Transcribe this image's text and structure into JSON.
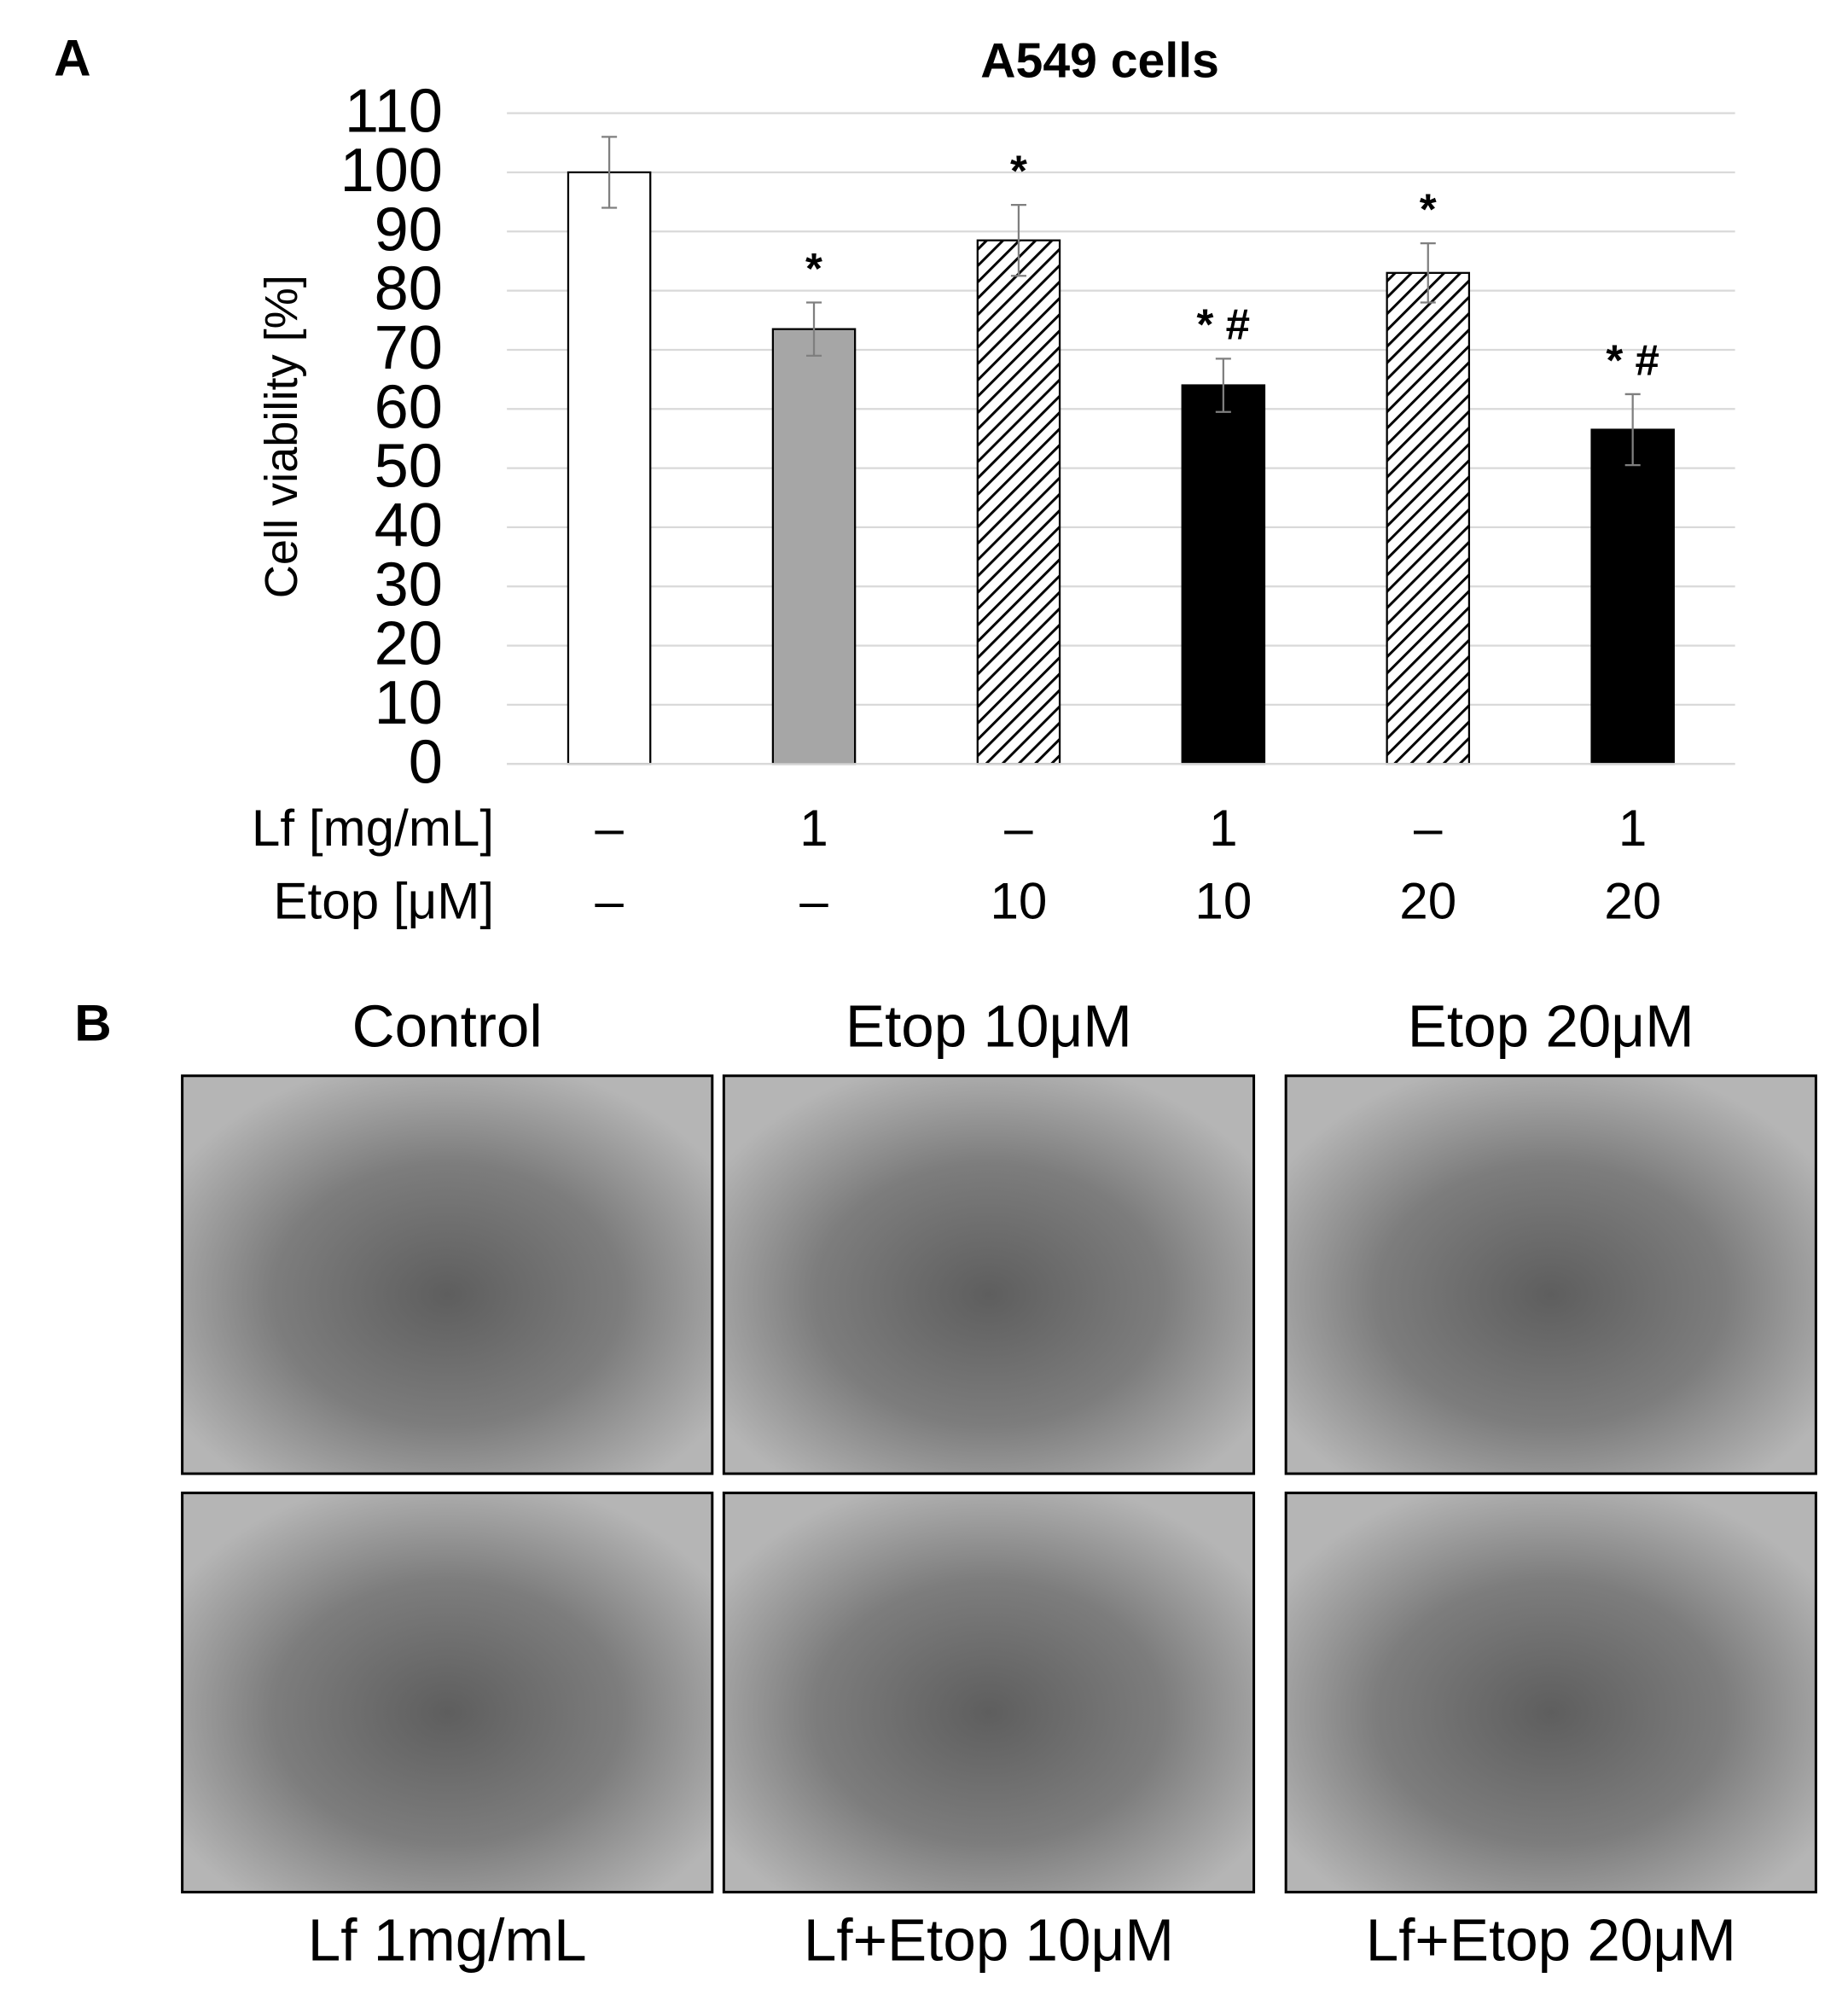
{
  "chart_data": {
    "type": "bar",
    "title": "A549 cells",
    "y_label": "Cell viability [%]",
    "values": [
      100,
      73.5,
      88.5,
      64,
      83,
      56.5
    ],
    "errors": [
      6,
      4.5,
      6,
      4.5,
      5,
      6
    ],
    "annotations": [
      null,
      "*",
      "*",
      "* #",
      "*",
      "* #"
    ],
    "colors": [
      "#ffffff",
      "#a6a6a6",
      "#ffffff",
      "#000000",
      "#ffffff",
      "#000000"
    ],
    "hatch": [
      false,
      false,
      true,
      false,
      true,
      false
    ],
    "conditions": [
      {
        "name": "Lf [mg/mL]",
        "values": [
          "–",
          "1",
          "–",
          "1",
          "–",
          "1"
        ]
      },
      {
        "name": "Etop [μM]",
        "values": [
          "–",
          "–",
          "10",
          "10",
          "20",
          "20"
        ]
      }
    ],
    "ylim": [
      0,
      110
    ],
    "yticks": [
      0,
      10,
      20,
      30,
      40,
      50,
      60,
      70,
      80,
      90,
      100,
      110
    ],
    "grid": true
  },
  "panels": {
    "a_label": "A",
    "b_label": "B",
    "top_images": [
      "Control",
      "Etop 10μM",
      "Etop 20μM"
    ],
    "bottom_images": [
      "Lf 1mg/mL",
      "Lf+Etop 10μM",
      "Lf+Etop 20μM"
    ]
  }
}
